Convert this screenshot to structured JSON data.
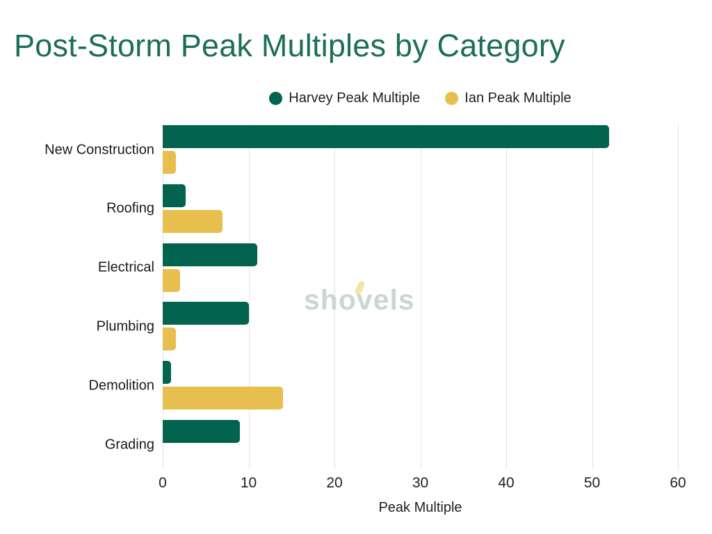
{
  "title": "Post-Storm Peak Multiples by Category",
  "colors": {
    "title": "#1B6E58",
    "harvey_green": "#02634E",
    "ian_gold": "#E7BF4F",
    "grid": "#E2E2E2",
    "watermark": "#C8D8D1",
    "watermark_accent": "#F2E3AE"
  },
  "watermark": {
    "pre": "sho",
    "v": "v",
    "post": "els"
  },
  "chart_data": {
    "type": "bar",
    "orientation": "horizontal",
    "title": "Post-Storm Peak Multiples by Category",
    "categories": [
      "New Construction",
      "Roofing",
      "Electrical",
      "Plumbing",
      "Demolition",
      "Grading"
    ],
    "series": [
      {
        "name": "Harvey Peak Multiple",
        "color": "#02634E",
        "values": [
          52,
          2.7,
          11,
          10,
          1,
          9
        ]
      },
      {
        "name": "Ian Peak Multiple",
        "color": "#E7BF4F",
        "values": [
          1.5,
          7,
          2,
          1.5,
          14,
          0
        ]
      }
    ],
    "xlabel": "Peak Multiple",
    "ylabel": "",
    "xlim": [
      0,
      60
    ],
    "xticks": [
      0,
      10,
      20,
      30,
      40,
      50,
      60
    ],
    "grid": true,
    "legend_position": "top"
  }
}
